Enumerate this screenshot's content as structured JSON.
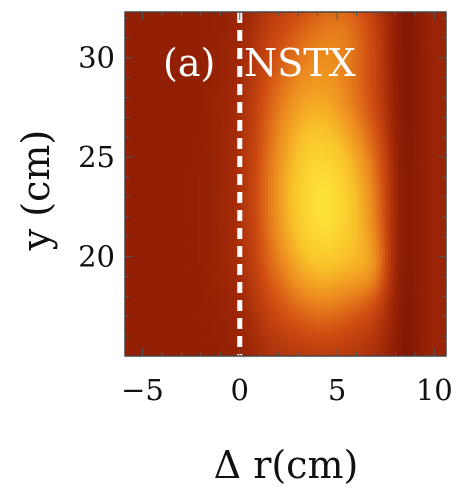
{
  "chart_data": {
    "type": "heatmap",
    "panel_label": "(a)",
    "panel_title": "NSTX",
    "xlabel": "Δ r(cm)",
    "ylabel": "y (cm)",
    "xlim": [
      -5.9,
      10.6
    ],
    "ylim": [
      15.0,
      32.3
    ],
    "xticks": [
      -5,
      0,
      5,
      10
    ],
    "xtick_labels": [
      "−5",
      "0",
      "5",
      "10"
    ],
    "yticks": [
      20,
      25,
      30
    ],
    "ytick_labels": [
      "20",
      "25",
      "30"
    ],
    "reference_line": {
      "x": 0,
      "style": "dashed",
      "color": "#ffffff"
    },
    "colormap": [
      "#7a1100",
      "#a32a08",
      "#cf4d12",
      "#ec8a1f",
      "#f9c22a",
      "#fde43a"
    ],
    "intensity_sources": [
      {
        "x": 4.6,
        "y": 23.0,
        "sx": 2.2,
        "sy": 3.6,
        "amp": 0.55
      },
      {
        "x": 3.4,
        "y": 28.0,
        "sx": 2.0,
        "sy": 4.0,
        "amp": 0.3
      },
      {
        "x": 4.0,
        "y": 19.5,
        "sx": 2.3,
        "sy": 3.0,
        "amp": 0.25
      },
      {
        "x": 5.5,
        "y": 31.5,
        "sx": 1.4,
        "sy": 2.0,
        "amp": 0.2
      },
      {
        "x": 6.8,
        "y": 19.5,
        "sx": 0.8,
        "sy": 1.2,
        "amp": 0.14
      }
    ],
    "background_level": 0.12,
    "dark_band_x": 8.6
  }
}
